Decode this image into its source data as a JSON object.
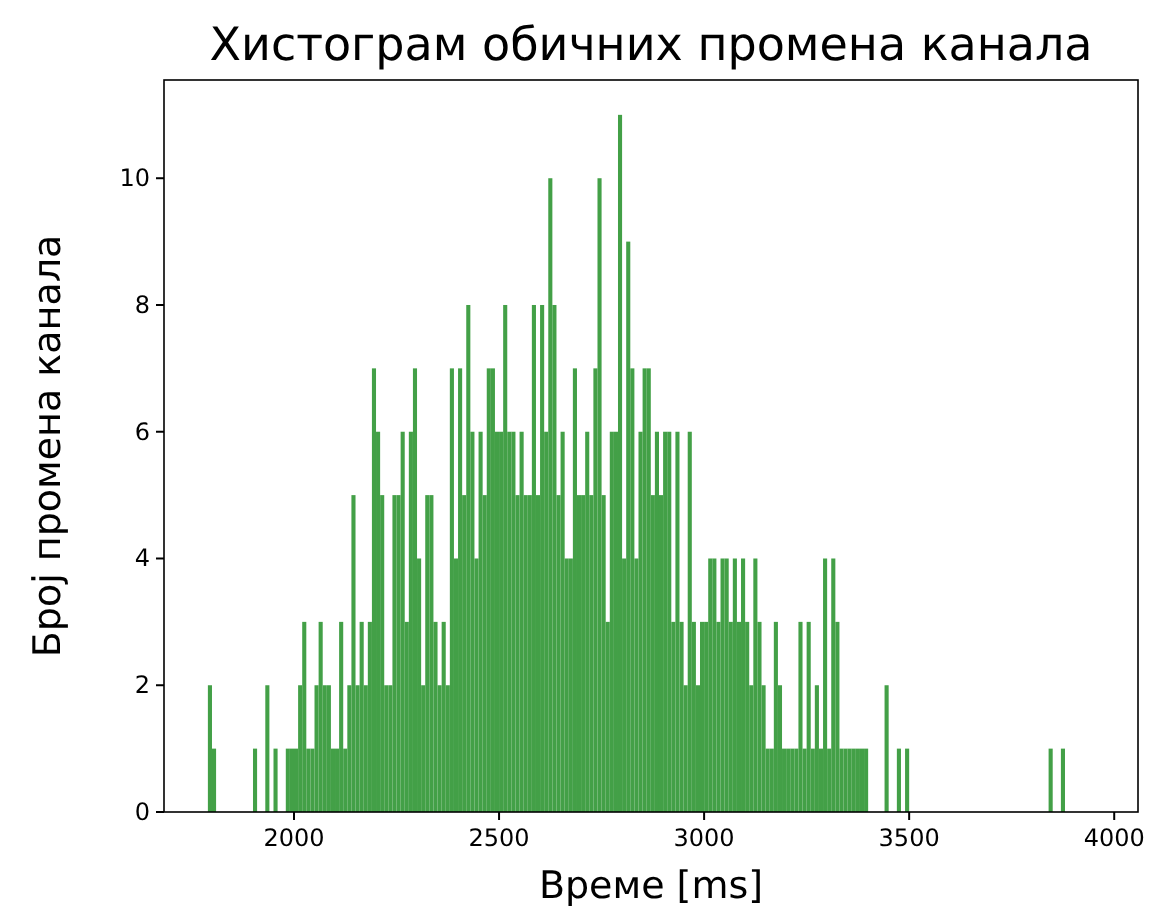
{
  "chart_data": {
    "type": "histogram",
    "title": "Хистограм обичних промена канала",
    "xlabel": "Време [ms]",
    "ylabel": "Број промена канала",
    "color": "#43a047",
    "bins": [
      1790,
      1800,
      1810,
      1820,
      1830,
      1840,
      1850,
      1860,
      1870,
      1880,
      1890,
      1900,
      1910,
      1920,
      1930,
      1940,
      1950,
      1960,
      1970,
      1980,
      1990,
      2000,
      2010,
      2020,
      2030,
      2040,
      2050,
      2060,
      2070,
      2080,
      2090,
      2100,
      2110,
      2120,
      2130,
      2140,
      2150,
      2160,
      2170,
      2180,
      2190,
      2200,
      2210,
      2220,
      2230,
      2240,
      2250,
      2260,
      2270,
      2280,
      2290,
      2300,
      2310,
      2320,
      2330,
      2340,
      2350,
      2360,
      2370,
      2380,
      2390,
      2400,
      2410,
      2420,
      2430,
      2440,
      2450,
      2460,
      2470,
      2480,
      2490,
      2500,
      2510,
      2520,
      2530,
      2540,
      2550,
      2560,
      2570,
      2580,
      2590,
      2600,
      2610,
      2620,
      2630,
      2640,
      2650,
      2660,
      2670,
      2680,
      2690,
      2700,
      2710,
      2720,
      2730,
      2740,
      2750,
      2760,
      2770,
      2780,
      2790,
      2800,
      2810,
      2820,
      2830,
      2840,
      2850,
      2860,
      2870,
      2880,
      2890,
      2900,
      2910,
      2920,
      2930,
      2940,
      2950,
      2960,
      2970,
      2980,
      2990,
      3000,
      3010,
      3020,
      3030,
      3040,
      3050,
      3060,
      3070,
      3080,
      3090,
      3100,
      3110,
      3120,
      3130,
      3140,
      3150,
      3160,
      3170,
      3180,
      3190,
      3200,
      3210,
      3220,
      3230,
      3240,
      3250,
      3260,
      3270,
      3280,
      3290,
      3300,
      3310,
      3320,
      3330,
      3340,
      3350,
      3360,
      3370,
      3380,
      3390,
      3400,
      3410,
      3420,
      3430,
      3440,
      3450,
      3460,
      3470,
      3480,
      3490,
      3500,
      3510,
      3520,
      3530,
      3540,
      3550,
      3560,
      3570,
      3580,
      3590,
      3600,
      3610,
      3620,
      3630,
      3640,
      3650,
      3660,
      3670,
      3680,
      3690,
      3700,
      3710,
      3720,
      3730,
      3740,
      3750,
      3760,
      3770,
      3780,
      3790,
      3800,
      3810,
      3820,
      3830,
      3840,
      3850,
      3860,
      3870,
      3880
    ],
    "values": [
      2,
      1,
      0,
      0,
      0,
      0,
      0,
      0,
      0,
      0,
      0,
      1,
      0,
      0,
      2,
      0,
      1,
      0,
      0,
      1,
      1,
      1,
      2,
      3,
      1,
      1,
      2,
      3,
      2,
      2,
      1,
      1,
      3,
      1,
      2,
      5,
      2,
      3,
      2,
      3,
      7,
      6,
      5,
      2,
      2,
      5,
      5,
      6,
      3,
      6,
      7,
      4,
      2,
      5,
      5,
      3,
      2,
      3,
      2,
      7,
      4,
      7,
      5,
      8,
      6,
      4,
      6,
      5,
      7,
      7,
      6,
      6,
      8,
      6,
      6,
      5,
      6,
      5,
      5,
      8,
      5,
      8,
      6,
      10,
      8,
      5,
      6,
      4,
      4,
      7,
      5,
      5,
      6,
      5,
      7,
      10,
      5,
      3,
      6,
      6,
      11,
      4,
      9,
      7,
      4,
      6,
      7,
      7,
      5,
      6,
      5,
      6,
      6,
      3,
      6,
      3,
      2,
      6,
      3,
      2,
      3,
      3,
      4,
      4,
      3,
      4,
      4,
      3,
      4,
      3,
      4,
      3,
      2,
      4,
      3,
      2,
      1,
      1,
      3,
      2,
      1,
      1,
      1,
      1,
      3,
      1,
      3,
      1,
      2,
      1,
      4,
      1,
      4,
      3,
      1,
      1,
      1,
      1,
      1,
      1,
      1,
      0,
      0,
      0,
      0,
      2,
      0,
      0,
      1,
      0,
      1,
      0,
      0,
      0,
      0,
      0,
      0,
      0,
      0,
      0,
      0,
      0,
      0,
      0,
      0,
      0,
      0,
      0,
      0,
      0,
      0,
      0,
      0,
      0,
      0,
      0,
      0,
      0,
      0,
      0,
      0,
      0,
      0,
      0,
      0,
      1,
      0,
      0,
      1
    ],
    "xlim": [
      1683,
      4058
    ],
    "ylim": [
      0,
      11.55
    ],
    "xticks": [
      2000,
      2500,
      3000,
      3500,
      4000
    ],
    "yticks": [
      0,
      2,
      4,
      6,
      8,
      10
    ]
  }
}
